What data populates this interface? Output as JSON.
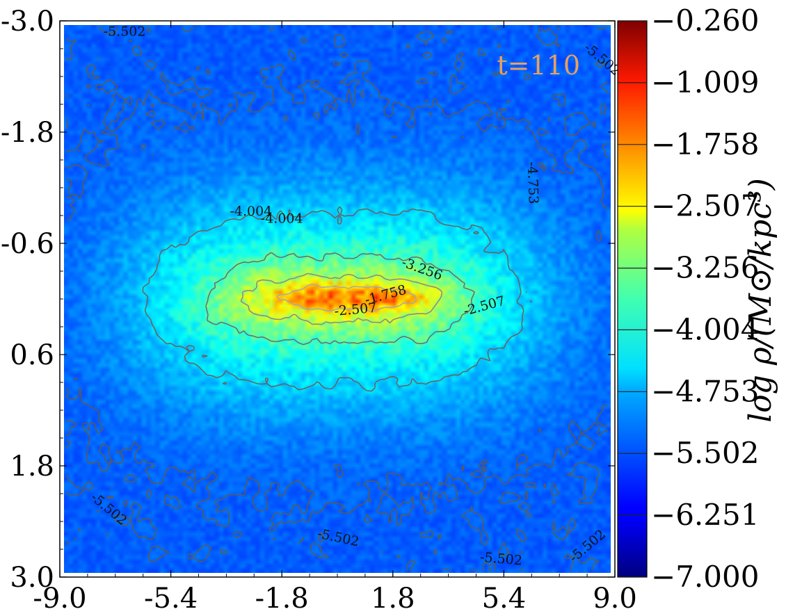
{
  "chart_data": {
    "type": "heatmap",
    "colormap": "jet",
    "title": "",
    "xlabel": "",
    "ylabel": "",
    "xlim": [
      -9.0,
      9.0
    ],
    "ylim": [
      -3.0,
      3.0
    ],
    "y_inverted": true,
    "x_ticks": [
      -9.0,
      -5.4,
      -1.8,
      1.8,
      5.4,
      9.0
    ],
    "x_tick_labels": [
      "-9.0",
      "-5.4",
      "-1.8",
      "1.8",
      "5.4",
      "9.0"
    ],
    "y_ticks": [
      -3.0,
      -1.8,
      -0.6,
      0.6,
      1.8,
      3.0
    ],
    "y_tick_labels": [
      "-3.0",
      "-1.8",
      "-0.6",
      "0.6",
      "1.8",
      "3.0"
    ],
    "annotation": "t=110",
    "colorbar": {
      "label": "log ρ/(M⊙/kpc³)",
      "min": -7.0,
      "max": -0.26,
      "ticks": [
        -7.0,
        -6.251,
        -5.502,
        -4.753,
        -4.004,
        -3.256,
        -2.507,
        -1.758,
        -1.009,
        -0.26
      ],
      "tick_labels": [
        "−7.000",
        "−6.251",
        "−5.502",
        "−4.753",
        "−4.004",
        "−3.256",
        "−2.507",
        "−1.758",
        "−1.009",
        "−0.260"
      ]
    },
    "contour_levels": [
      -5.502,
      -4.753,
      -4.004,
      -3.256,
      -2.507,
      -1.758
    ],
    "contour_labels": [
      {
        "text": "-5.502",
        "x": -6.9,
        "y": -2.84,
        "angle": 0
      },
      {
        "text": "-5.502",
        "x": 8.5,
        "y": -2.55,
        "angle": 40
      },
      {
        "text": "-5.502",
        "x": -7.5,
        "y": 2.3,
        "angle": 40
      },
      {
        "text": "-5.502",
        "x": 0.0,
        "y": 2.62,
        "angle": 12
      },
      {
        "text": "-5.502",
        "x": 5.3,
        "y": 2.85,
        "angle": 5
      },
      {
        "text": "-5.502",
        "x": 8.2,
        "y": 2.7,
        "angle": -40
      },
      {
        "text": "-4.753",
        "x": 6.2,
        "y": -1.25,
        "angle": 88
      },
      {
        "text": "-4.004",
        "x": -2.8,
        "y": -0.9,
        "angle": 0
      },
      {
        "text": "-4.004",
        "x": -1.8,
        "y": -0.82,
        "angle": 0
      },
      {
        "text": "-3.256",
        "x": 2.7,
        "y": -0.28,
        "angle": 20
      },
      {
        "text": "-2.507",
        "x": 0.6,
        "y": 0.16,
        "angle": -5
      },
      {
        "text": "-1.758",
        "x": 1.6,
        "y": 0.0,
        "angle": -15
      },
      {
        "text": "-2.507",
        "x": 4.8,
        "y": 0.12,
        "angle": -15
      }
    ],
    "density_model": {
      "background": -5.55,
      "components": [
        {
          "cx": 0.0,
          "cy": 0.0,
          "sx": 6.8,
          "sy": 1.15,
          "amp": 1.55
        },
        {
          "cx": 0.0,
          "cy": 0.0,
          "sx": 4.2,
          "sy": 0.38,
          "amp": 1.15
        },
        {
          "cx": 0.5,
          "cy": -0.02,
          "sx": 2.6,
          "sy": 0.14,
          "amp": 1.05
        }
      ]
    }
  }
}
